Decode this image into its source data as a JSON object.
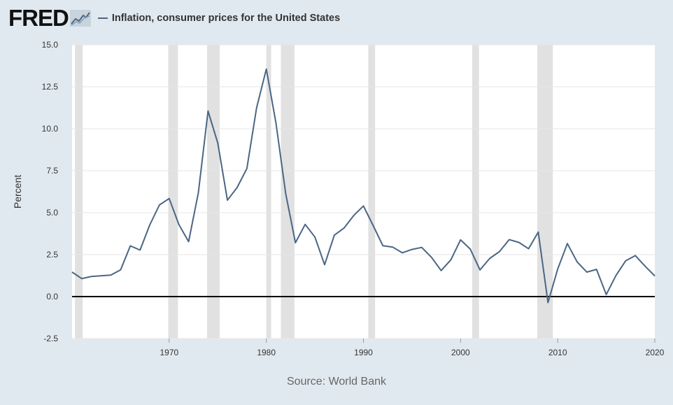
{
  "header": {
    "logo_text": "FRED",
    "logo_mark_icon": "fred-line-chart-icon",
    "legend_label": "Inflation, consumer prices for the United States"
  },
  "source": "Source: World Bank",
  "colors": {
    "series": "#4b6683",
    "recession": "#e1e1e1",
    "zero_line": "#000000",
    "background": "#e1e9f0",
    "plot_background": "#ffffff"
  },
  "chart_data": {
    "type": "line",
    "ylabel": "Percent",
    "xlabel": "",
    "ylim": [
      -2.5,
      15.0
    ],
    "xlim": [
      1960,
      2020
    ],
    "yticks": [
      "-2.5",
      "0.0",
      "2.5",
      "5.0",
      "7.5",
      "10.0",
      "12.5",
      "15.0"
    ],
    "xticks": [
      "1970",
      "1980",
      "1990",
      "2000",
      "2010",
      "2020"
    ],
    "grid": true,
    "recessions": [
      [
        1960.3,
        1961.1
      ],
      [
        1969.9,
        1970.9
      ],
      [
        1973.9,
        1975.2
      ],
      [
        1980.0,
        1980.5
      ],
      [
        1981.5,
        1982.9
      ],
      [
        1990.5,
        1991.2
      ],
      [
        2001.2,
        2001.9
      ],
      [
        2007.9,
        2009.5
      ]
    ],
    "series": [
      {
        "name": "Inflation, consumer prices for the United States",
        "x": [
          1960,
          1961,
          1962,
          1963,
          1964,
          1965,
          1966,
          1967,
          1968,
          1969,
          1970,
          1971,
          1972,
          1973,
          1974,
          1975,
          1976,
          1977,
          1978,
          1979,
          1980,
          1981,
          1982,
          1983,
          1984,
          1985,
          1986,
          1987,
          1988,
          1989,
          1990,
          1991,
          1992,
          1993,
          1994,
          1995,
          1996,
          1997,
          1998,
          1999,
          2000,
          2001,
          2002,
          2003,
          2004,
          2005,
          2006,
          2007,
          2008,
          2009,
          2010,
          2011,
          2012,
          2013,
          2014,
          2015,
          2016,
          2017,
          2018,
          2019,
          2020
        ],
        "values": [
          1.46,
          1.07,
          1.2,
          1.24,
          1.28,
          1.59,
          3.02,
          2.77,
          4.27,
          5.46,
          5.84,
          4.29,
          3.27,
          6.18,
          11.05,
          9.14,
          5.74,
          6.5,
          7.63,
          11.25,
          13.55,
          10.33,
          6.13,
          3.21,
          4.3,
          3.55,
          1.9,
          3.66,
          4.08,
          4.83,
          5.4,
          4.23,
          3.03,
          2.95,
          2.61,
          2.81,
          2.93,
          2.34,
          1.55,
          2.19,
          3.38,
          2.83,
          1.59,
          2.27,
          2.68,
          3.39,
          3.23,
          2.85,
          3.84,
          -0.36,
          1.64,
          3.16,
          2.07,
          1.46,
          1.62,
          0.12,
          1.26,
          2.13,
          2.44,
          1.81,
          1.23
        ]
      }
    ]
  }
}
